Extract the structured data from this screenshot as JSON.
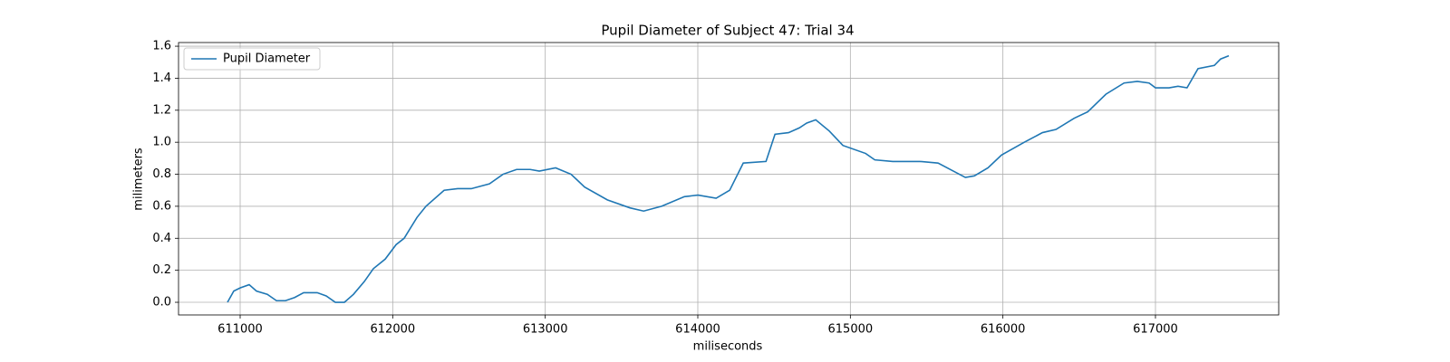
{
  "chart_data": {
    "type": "line",
    "title": "Pupil Diameter of Subject 47: Trial 34",
    "x_label": "miliseconds",
    "y_label": "milimeters",
    "x": [
      610917,
      610958,
      611000,
      611059,
      611107,
      611178,
      611238,
      611297,
      611357,
      611416,
      611505,
      611564,
      611624,
      611683,
      611743,
      611814,
      611873,
      611951,
      612022,
      612075,
      612159,
      612218,
      612337,
      612426,
      612515,
      612634,
      612723,
      612812,
      612901,
      612961,
      613068,
      613169,
      613258,
      613407,
      613555,
      613645,
      613763,
      613912,
      614001,
      614120,
      614209,
      614298,
      614447,
      614506,
      614595,
      614666,
      614714,
      614773,
      614862,
      614951,
      615100,
      615160,
      615278,
      615456,
      615575,
      615695,
      615754,
      615813,
      615902,
      615991,
      616140,
      616259,
      616348,
      616467,
      616556,
      616675,
      616794,
      616881,
      616958,
      617000,
      617089,
      617148,
      617207,
      617279,
      617386,
      617427,
      617481
    ],
    "series": [
      {
        "name": "Pupil Diameter",
        "color": "#1f77b4",
        "values": [
          0.0,
          0.07,
          0.09,
          0.11,
          0.07,
          0.05,
          0.01,
          0.01,
          0.03,
          0.06,
          0.06,
          0.04,
          0.0,
          0.0,
          0.05,
          0.13,
          0.21,
          0.27,
          0.36,
          0.4,
          0.53,
          0.6,
          0.7,
          0.71,
          0.71,
          0.74,
          0.8,
          0.83,
          0.83,
          0.82,
          0.84,
          0.8,
          0.72,
          0.64,
          0.59,
          0.57,
          0.6,
          0.66,
          0.67,
          0.65,
          0.7,
          0.87,
          0.88,
          1.05,
          1.06,
          1.09,
          1.12,
          1.14,
          1.07,
          0.98,
          0.93,
          0.89,
          0.88,
          0.88,
          0.87,
          0.81,
          0.78,
          0.79,
          0.84,
          0.92,
          1.0,
          1.06,
          1.08,
          1.15,
          1.19,
          1.3,
          1.37,
          1.38,
          1.37,
          1.34,
          1.34,
          1.35,
          1.34,
          1.46,
          1.48,
          1.52,
          1.54
        ]
      }
    ],
    "xlim": [
      610596,
      617808
    ],
    "ylim": [
      -0.079,
      1.623
    ],
    "xticks": [
      611000,
      612000,
      613000,
      614000,
      615000,
      616000,
      617000
    ],
    "yticks": [
      {
        "value": 0,
        "label": "0.0"
      },
      {
        "value": 0.2,
        "label": "0.2"
      },
      {
        "value": 0.4,
        "label": "0.4"
      },
      {
        "value": 0.6,
        "label": "0.6"
      },
      {
        "value": 0.8,
        "label": "0.8"
      },
      {
        "value": 1.0,
        "label": "1.0"
      },
      {
        "value": 1.2,
        "label": "1.2"
      },
      {
        "value": 1.4,
        "label": "1.4"
      },
      {
        "value": 1.6,
        "label": "1.6"
      }
    ],
    "grid": true,
    "legend": "upper-left"
  }
}
